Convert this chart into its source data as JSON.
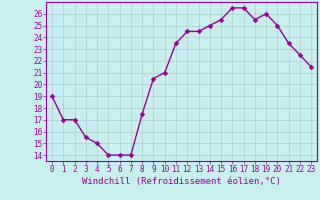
{
  "x": [
    0,
    1,
    2,
    3,
    4,
    5,
    6,
    7,
    8,
    9,
    10,
    11,
    12,
    13,
    14,
    15,
    16,
    17,
    18,
    19,
    20,
    21,
    22,
    23
  ],
  "y": [
    19,
    17,
    17,
    15.5,
    15,
    14,
    14,
    14,
    17.5,
    20.5,
    21,
    23.5,
    24.5,
    24.5,
    25,
    25.5,
    26.5,
    26.5,
    25.5,
    26,
    25,
    23.5,
    22.5,
    21.5
  ],
  "line_color": "#990099",
  "marker": "D",
  "marker_size": 2.5,
  "bg_color": "#c8eef0",
  "grid_color": "#aacccc",
  "xlabel": "Windchill (Refroidissement éolien,°C)",
  "xlabel_color": "#990099",
  "tick_color": "#990099",
  "spine_color": "#990099",
  "xlim": [
    -0.5,
    23.5
  ],
  "ylim": [
    13.5,
    27
  ],
  "yticks": [
    14,
    15,
    16,
    17,
    18,
    19,
    20,
    21,
    22,
    23,
    24,
    25,
    26
  ],
  "xticks": [
    0,
    1,
    2,
    3,
    4,
    5,
    6,
    7,
    8,
    9,
    10,
    11,
    12,
    13,
    14,
    15,
    16,
    17,
    18,
    19,
    20,
    21,
    22,
    23
  ],
  "xtick_labels": [
    "0",
    "1",
    "2",
    "3",
    "4",
    "5",
    "6",
    "7",
    "8",
    "9",
    "10",
    "11",
    "12",
    "13",
    "14",
    "15",
    "16",
    "17",
    "18",
    "19",
    "20",
    "21",
    "22",
    "23"
  ],
  "font_family": "monospace",
  "tick_fontsize": 5.5,
  "xlabel_fontsize": 6.5,
  "linewidth": 1.0
}
